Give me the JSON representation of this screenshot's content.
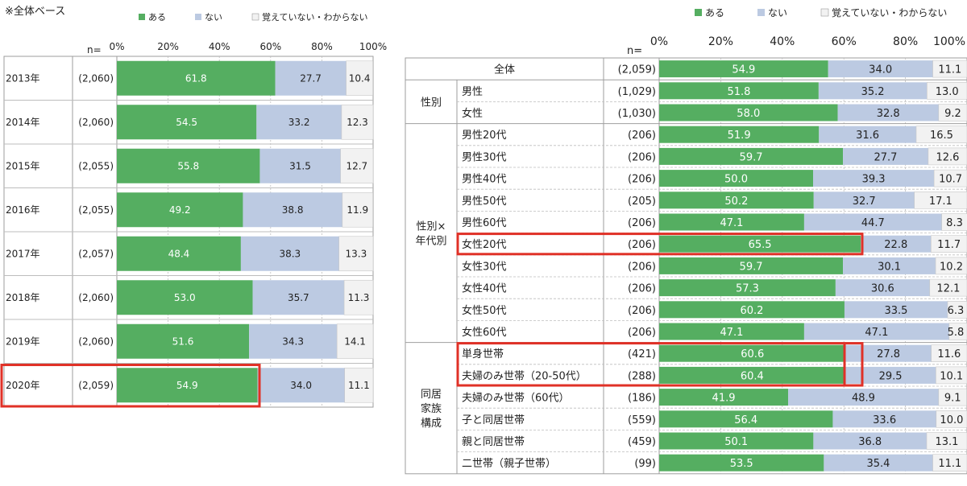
{
  "note": "※全体ベース",
  "legend": [
    "ある",
    "ない",
    "覚えていない・わからない"
  ],
  "n_label": "n=",
  "ticks": [
    "0%",
    "20%",
    "40%",
    "60%",
    "80%",
    "100%"
  ],
  "colors": {
    "series": [
      "#55ae61",
      "#bccae2",
      "#f2f2f2"
    ],
    "highlight": "#e03127",
    "grid": "#bdbdbd"
  },
  "chart_data": [
    {
      "type": "bar",
      "orientation": "horizontal",
      "stacked": true,
      "xlim": [
        0,
        100
      ],
      "categories": [
        "2013年",
        "2014年",
        "2015年",
        "2016年",
        "2017年",
        "2018年",
        "2019年",
        "2020年"
      ],
      "n": [
        "(2,060)",
        "(2,060)",
        "(2,055)",
        "(2,055)",
        "(2,057)",
        "(2,060)",
        "(2,060)",
        "(2,059)"
      ],
      "series": [
        {
          "name": "ある",
          "values": [
            61.8,
            54.5,
            55.8,
            49.2,
            48.4,
            53.0,
            51.6,
            54.9
          ]
        },
        {
          "name": "ない",
          "values": [
            27.7,
            33.2,
            31.5,
            38.8,
            38.3,
            35.7,
            34.3,
            34.0
          ]
        },
        {
          "name": "覚えていない・わからない",
          "values": [
            10.4,
            12.3,
            12.7,
            11.9,
            13.3,
            11.3,
            14.1,
            11.1
          ]
        }
      ],
      "highlighted": [
        "2020年"
      ]
    },
    {
      "type": "bar",
      "orientation": "horizontal",
      "stacked": true,
      "xlim": [
        0,
        100
      ],
      "groups": [
        {
          "label": "",
          "rows": [
            0
          ]
        },
        {
          "label": "性別",
          "rows": [
            1,
            2
          ]
        },
        {
          "label": "性別×\n年代別",
          "rows": [
            3,
            4,
            5,
            6,
            7,
            8,
            9,
            10,
            11,
            12
          ]
        },
        {
          "label": "同居\n家族\n構成",
          "rows": [
            13,
            14,
            15,
            16,
            17,
            18
          ]
        }
      ],
      "categories": [
        "全体",
        "男性",
        "女性",
        "男性20代",
        "男性30代",
        "男性40代",
        "男性50代",
        "男性60代",
        "女性20代",
        "女性30代",
        "女性40代",
        "女性50代",
        "女性60代",
        "単身世帯",
        "夫婦のみ世帯（20-50代）",
        "夫婦のみ世帯（60代）",
        "子と同居世帯",
        "親と同居世帯",
        "二世帯（親子世帯）"
      ],
      "n": [
        "(2,059)",
        "(1,029)",
        "(1,030)",
        "(206)",
        "(206)",
        "(206)",
        "(205)",
        "(206)",
        "(206)",
        "(206)",
        "(206)",
        "(206)",
        "(206)",
        "(421)",
        "(288)",
        "(186)",
        "(559)",
        "(459)",
        "(99)"
      ],
      "series": [
        {
          "name": "ある",
          "values": [
            54.9,
            51.8,
            58.0,
            51.9,
            59.7,
            50.0,
            50.2,
            47.1,
            65.5,
            59.7,
            57.3,
            60.2,
            47.1,
            60.6,
            60.4,
            41.9,
            56.4,
            50.1,
            53.5
          ]
        },
        {
          "name": "ない",
          "values": [
            34.0,
            35.2,
            32.8,
            31.6,
            27.7,
            39.3,
            32.7,
            44.7,
            22.8,
            30.1,
            30.6,
            33.5,
            47.1,
            27.8,
            29.5,
            48.9,
            33.6,
            36.8,
            35.4
          ]
        },
        {
          "name": "覚えていない・わからない",
          "values": [
            11.1,
            13.0,
            9.2,
            16.5,
            12.6,
            10.7,
            17.1,
            8.3,
            11.7,
            10.2,
            12.1,
            6.3,
            5.8,
            11.6,
            10.1,
            9.1,
            10.0,
            13.1,
            11.1
          ]
        }
      ],
      "highlighted": [
        "女性20代",
        "単身世帯",
        "夫婦のみ世帯（20-50代）"
      ]
    }
  ]
}
